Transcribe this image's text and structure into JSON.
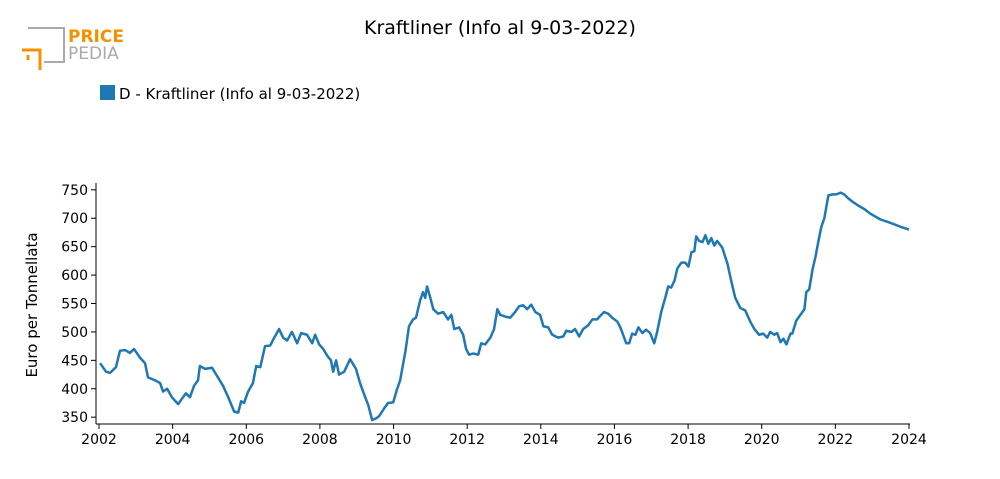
{
  "logo": {
    "top": "PRICE",
    "bottom": "PEDIA"
  },
  "chart_data": {
    "type": "line",
    "title": "Kraftliner (Info al 9-03-2022)",
    "y_label": "Euro per Tonnellata",
    "xlim": [
      2002,
      2024
    ],
    "xticks": [
      2002,
      2004,
      2006,
      2008,
      2010,
      2012,
      2014,
      2016,
      2018,
      2020,
      2022,
      2024
    ],
    "ylim": [
      338,
      762
    ],
    "yticks": [
      350,
      400,
      450,
      500,
      550,
      600,
      650,
      700,
      750
    ],
    "grid": false,
    "legend": "top-left",
    "x": [
      2002.03,
      2002.19,
      2002.3,
      2002.46,
      2002.57,
      2002.71,
      2002.84,
      2002.95,
      2003.11,
      2003.25,
      2003.33,
      2003.52,
      2003.66,
      2003.74,
      2003.85,
      2003.98,
      2004.15,
      2004.28,
      2004.36,
      2004.47,
      2004.58,
      2004.69,
      2004.74,
      2004.88,
      2005.07,
      2005.23,
      2005.37,
      2005.51,
      2005.67,
      2005.78,
      2005.86,
      2005.94,
      2006.05,
      2006.18,
      2006.27,
      2006.38,
      2006.51,
      2006.65,
      2006.76,
      2006.89,
      2007.0,
      2007.11,
      2007.24,
      2007.38,
      2007.49,
      2007.65,
      2007.79,
      2007.87,
      2007.98,
      2008.09,
      2008.2,
      2008.3,
      2008.36,
      2008.44,
      2008.52,
      2008.66,
      2008.82,
      2008.98,
      2009.09,
      2009.23,
      2009.31,
      2009.42,
      2009.53,
      2009.61,
      2009.74,
      2009.85,
      2009.99,
      2010.1,
      2010.18,
      2010.32,
      2010.42,
      2010.53,
      2010.61,
      2010.72,
      2010.8,
      2010.86,
      2010.91,
      2010.99,
      2011.08,
      2011.21,
      2011.35,
      2011.48,
      2011.57,
      2011.65,
      2011.78,
      2011.89,
      2011.97,
      2012.05,
      2012.16,
      2012.3,
      2012.38,
      2012.49,
      2012.63,
      2012.73,
      2012.82,
      2012.9,
      2013.03,
      2013.17,
      2013.3,
      2013.41,
      2013.52,
      2013.63,
      2013.74,
      2013.85,
      2013.98,
      2014.07,
      2014.2,
      2014.31,
      2014.47,
      2014.61,
      2014.69,
      2014.83,
      2014.93,
      2015.04,
      2015.15,
      2015.29,
      2015.4,
      2015.53,
      2015.61,
      2015.72,
      2015.83,
      2015.94,
      2016.08,
      2016.16,
      2016.32,
      2016.4,
      2016.48,
      2016.57,
      2016.65,
      2016.76,
      2016.86,
      2016.97,
      2017.08,
      2017.16,
      2017.27,
      2017.38,
      2017.46,
      2017.54,
      2017.63,
      2017.71,
      2017.82,
      2017.92,
      2018.01,
      2018.09,
      2018.17,
      2018.22,
      2018.3,
      2018.39,
      2018.47,
      2018.55,
      2018.63,
      2018.71,
      2018.79,
      2018.93,
      2019.07,
      2019.17,
      2019.28,
      2019.42,
      2019.55,
      2019.69,
      2019.8,
      2019.93,
      2020.04,
      2020.15,
      2020.23,
      2020.34,
      2020.42,
      2020.51,
      2020.59,
      2020.67,
      2020.78,
      2020.83,
      2020.94,
      2021.05,
      2021.16,
      2021.21,
      2021.29,
      2021.38,
      2021.46,
      2021.54,
      2021.62,
      2021.7,
      2021.81,
      2021.92,
      2022.03,
      2022.14,
      2022.24,
      2022.35,
      2022.49,
      2022.63,
      2022.79,
      2022.95,
      2023.22,
      2023.49,
      2023.77,
      2024.0
    ],
    "series": [
      {
        "name": "D - Kraftliner (Info al 9-03-2022)",
        "color": "#1f77b4",
        "values": [
          445,
          430,
          428,
          438,
          467,
          468,
          463,
          470,
          455,
          445,
          420,
          415,
          410,
          395,
          400,
          385,
          373,
          385,
          392,
          385,
          405,
          415,
          440,
          435,
          437,
          420,
          405,
          385,
          360,
          358,
          378,
          375,
          395,
          410,
          440,
          438,
          475,
          476,
          490,
          505,
          490,
          485,
          500,
          480,
          498,
          495,
          480,
          495,
          478,
          470,
          458,
          450,
          430,
          450,
          425,
          430,
          452,
          435,
          410,
          385,
          372,
          345,
          348,
          352,
          365,
          375,
          376,
          400,
          415,
          465,
          510,
          522,
          525,
          555,
          570,
          560,
          580,
          562,
          540,
          532,
          535,
          522,
          530,
          505,
          508,
          495,
          470,
          460,
          462,
          460,
          480,
          478,
          490,
          505,
          540,
          530,
          527,
          525,
          535,
          545,
          547,
          540,
          548,
          535,
          530,
          510,
          508,
          495,
          490,
          492,
          502,
          500,
          505,
          492,
          505,
          512,
          522,
          522,
          528,
          535,
          532,
          525,
          518,
          508,
          480,
          480,
          497,
          495,
          508,
          498,
          504,
          498,
          480,
          500,
          535,
          560,
          580,
          578,
          590,
          612,
          622,
          622,
          615,
          640,
          642,
          668,
          660,
          658,
          670,
          655,
          665,
          652,
          660,
          648,
          620,
          590,
          560,
          542,
          538,
          518,
          505,
          495,
          497,
          490,
          500,
          495,
          498,
          482,
          488,
          478,
          497,
          497,
          520,
          530,
          540,
          570,
          575,
          610,
          632,
          660,
          685,
          700,
          740,
          742,
          742,
          745,
          742,
          735,
          728,
          722,
          716,
          708,
          698,
          692,
          685,
          680
        ]
      }
    ]
  }
}
